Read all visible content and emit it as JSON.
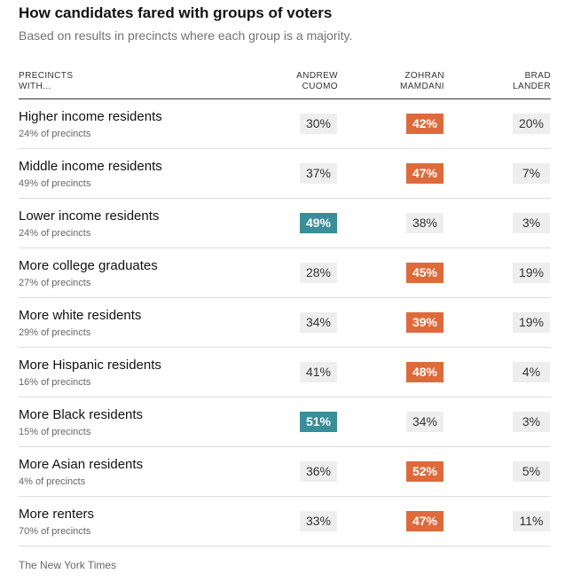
{
  "title": "How candidates fared with groups of voters",
  "subtitle": "Based on results in precincts where each group is a majority.",
  "source": "The New York Times",
  "colors": {
    "cuomo_winner": "#3a8e9a",
    "mamdani_winner": "#de6a3b",
    "neutral_cell": "#eeeeee"
  },
  "header": {
    "row_label": [
      "PRECINCTS",
      "WITH..."
    ],
    "candidates": [
      [
        "ANDREW",
        "CUOMO"
      ],
      [
        "ZOHRAN",
        "MAMDANI"
      ],
      [
        "BRAD",
        "LANDER"
      ]
    ]
  },
  "chart_data": {
    "type": "table",
    "title": "How candidates fared with groups of voters",
    "subtitle": "Based on results in precincts where each group is a majority.",
    "columns": [
      "Andrew Cuomo",
      "Zohran Mamdani",
      "Brad Lander"
    ],
    "rows": [
      {
        "group": "Higher income residents",
        "share": "24% of precincts",
        "values": [
          "30%",
          "42%",
          "20%"
        ],
        "winner": 1
      },
      {
        "group": "Middle income residents",
        "share": "49% of precincts",
        "values": [
          "37%",
          "47%",
          "7%"
        ],
        "winner": 1
      },
      {
        "group": "Lower income residents",
        "share": "24% of precincts",
        "values": [
          "49%",
          "38%",
          "3%"
        ],
        "winner": 0
      },
      {
        "group": "More college graduates",
        "share": "27% of precincts",
        "values": [
          "28%",
          "45%",
          "19%"
        ],
        "winner": 1
      },
      {
        "group": "More white residents",
        "share": "29% of precincts",
        "values": [
          "34%",
          "39%",
          "19%"
        ],
        "winner": 1
      },
      {
        "group": "More Hispanic residents",
        "share": "16% of precincts",
        "values": [
          "41%",
          "48%",
          "4%"
        ],
        "winner": 1
      },
      {
        "group": "More Black residents",
        "share": "15% of precincts",
        "values": [
          "51%",
          "34%",
          "3%"
        ],
        "winner": 0
      },
      {
        "group": "More Asian residents",
        "share": "4% of precincts",
        "values": [
          "36%",
          "52%",
          "5%"
        ],
        "winner": 1
      },
      {
        "group": "More renters",
        "share": "70% of precincts",
        "values": [
          "33%",
          "47%",
          "11%"
        ],
        "winner": 1
      }
    ]
  }
}
